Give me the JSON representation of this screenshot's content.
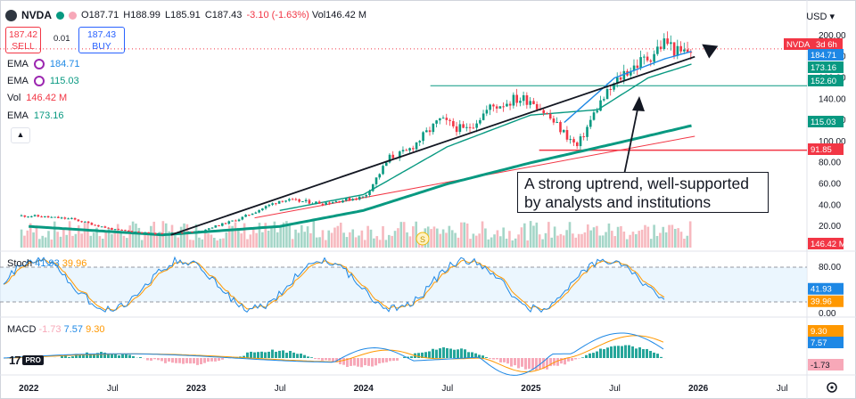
{
  "header": {
    "symbol": "NVDA",
    "open_label": "O",
    "open": "187.71",
    "high_label": "H",
    "high": "188.99",
    "low_label": "L",
    "low": "185.91",
    "close_label": "C",
    "close": "187.43",
    "change": "-3.10 (-1.63%)",
    "vol_label": "Vol",
    "volume": "146.42 M",
    "currency": "USD"
  },
  "trade": {
    "sell_price": "187.42",
    "sell_label": "SELL",
    "spread": "0.01",
    "buy_price": "187.43",
    "buy_label": "BUY"
  },
  "indicators": [
    {
      "name": "EMA",
      "value": "184.71",
      "color": "#1e88e5"
    },
    {
      "name": "EMA",
      "value": "115.03",
      "color": "#089981"
    },
    {
      "name": "Vol",
      "value": "146.42 M",
      "color": "#f23645"
    },
    {
      "name": "EMA",
      "value": "173.16",
      "color": "#089981"
    }
  ],
  "stoch_legend": {
    "name": "Stoch",
    "k": "41.93",
    "d": "39.96"
  },
  "macd_legend": {
    "name": "MACD",
    "hist": "-1.73",
    "macd": "7.57",
    "signal": "9.30"
  },
  "annotation": {
    "line1": "A strong uptrend, well-supported",
    "line2": "by analysts and institutions"
  },
  "branding": {
    "text": "17",
    "pro": "PRO"
  },
  "colors": {
    "up": "#089981",
    "down": "#f23645",
    "ema_fast": "#1e88e5",
    "ema_mid": "#089981",
    "ema_slow": "#089981",
    "trend": "#131722",
    "resist": "#f23645"
  },
  "chart_data": {
    "type": "candlestick",
    "title": "NVDA",
    "x_ticks": [
      "2022",
      "Jul",
      "2023",
      "Jul",
      "2024",
      "Jul",
      "2025",
      "Jul",
      "2026",
      "Jul"
    ],
    "price_axis": {
      "ticks": [
        "200.00",
        "180.00",
        "160.00",
        "140.00",
        "120.00",
        "100.00",
        "80.00",
        "60.00",
        "40.00",
        "20.00"
      ],
      "ylim": [
        0,
        215
      ],
      "tags": [
        {
          "label": "NVDA",
          "value": "3d 6h",
          "color": "#f23645"
        },
        {
          "label": "184.71",
          "color": "#1e88e5"
        },
        {
          "label": "173.16",
          "color": "#089981"
        },
        {
          "label": "152.60",
          "color": "#089981"
        },
        {
          "label": "115.03",
          "color": "#089981"
        },
        {
          "label": "91.85",
          "color": "#f23645"
        },
        {
          "label": "146.42 M",
          "color": "#f23645"
        }
      ]
    },
    "series": [
      {
        "name": "close",
        "x": [
          2022.0,
          2022.25,
          2022.5,
          2022.75,
          2023.0,
          2023.25,
          2023.5,
          2023.75,
          2024.0,
          2024.15,
          2024.25,
          2024.45,
          2024.6,
          2024.75,
          2024.9,
          2025.0,
          2025.15,
          2025.27,
          2025.4,
          2025.55,
          2025.7,
          2025.8,
          2025.88,
          2025.95
        ],
        "values": [
          30,
          27,
          17,
          13,
          15,
          27,
          45,
          42,
          48,
          85,
          90,
          120,
          110,
          132,
          140,
          140,
          115,
          95,
          135,
          165,
          180,
          195,
          182,
          187
        ]
      },
      {
        "name": "EMA 184.71",
        "x": [
          2025.2,
          2025.5,
          2025.8,
          2025.96
        ],
        "values": [
          118,
          160,
          178,
          185
        ]
      },
      {
        "name": "EMA 173.16",
        "x": [
          2023.5,
          2024.0,
          2024.5,
          2025.0,
          2025.4,
          2025.7,
          2025.96
        ],
        "values": [
          35,
          50,
          95,
          125,
          130,
          160,
          173
        ]
      },
      {
        "name": "EMA 115.03",
        "x": [
          2022.0,
          2022.8,
          2023.5,
          2024.0,
          2024.5,
          2025.0,
          2025.5,
          2025.96
        ],
        "values": [
          20,
          12,
          20,
          35,
          60,
          80,
          98,
          115
        ]
      }
    ],
    "trendline": {
      "x": [
        2022.85,
        2025.98
      ],
      "values": [
        12,
        180
      ]
    },
    "horizontal_levels": [
      152.6,
      91.85
    ],
    "stoch": {
      "ticks": [
        "80.00",
        "20.00",
        "0.00"
      ],
      "k": "41.93",
      "d": "39.96"
    },
    "macd": {
      "ticks": [
        "9.30",
        "7.57",
        "-1.73"
      ],
      "macd": "7.57",
      "signal": "9.30",
      "hist": "-1.73"
    }
  }
}
